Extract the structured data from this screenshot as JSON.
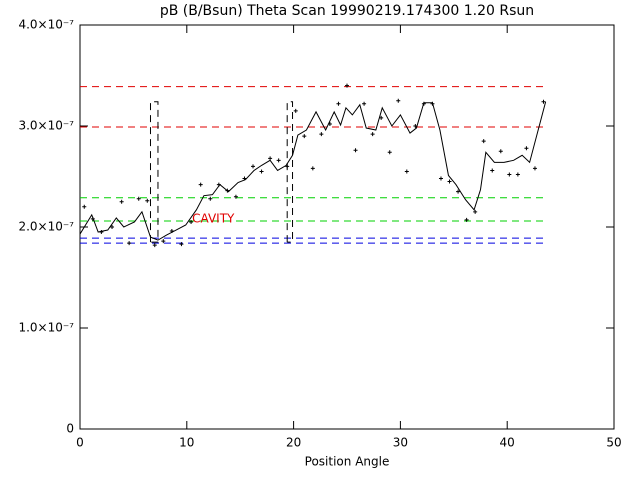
{
  "chart_data": {
    "type": "line",
    "title": "pB (B/Bsun) Theta Scan 19990219.174300 1.20 Rsun",
    "x_label": "Position Angle",
    "xlim": [
      0,
      50
    ],
    "xticks": [
      0,
      10,
      20,
      30,
      40,
      50
    ],
    "ylim": [
      0,
      4e-07
    ],
    "yticks": [
      0,
      {
        "value": 1e-07,
        "label": "1.0×10⁻⁷"
      },
      {
        "value": 2e-07,
        "label": "2.0×10⁻⁷"
      },
      {
        "value": 3e-07,
        "label": "3.0×10⁻⁷"
      },
      {
        "value": 4e-07,
        "label": "4.0×10⁻⁷"
      }
    ],
    "line": {
      "color": "#000000",
      "x": [
        0,
        1.1,
        1.7,
        2.6,
        3.4,
        4.1,
        5.1,
        5.8,
        6.6,
        7.3,
        8.1,
        9.0,
        9.9,
        10.9,
        11.6,
        12.4,
        13.1,
        13.9,
        14.8,
        15.5,
        16.3,
        17.0,
        17.8,
        18.5,
        19.3,
        19.9,
        20.4,
        21.2,
        22.1,
        23.0,
        23.8,
        24.4,
        24.9,
        25.5,
        26.2,
        26.8,
        27.7,
        28.3,
        29.2,
        30.0,
        30.9,
        31.5,
        32.2,
        33.0,
        33.7,
        34.5,
        35.2,
        36.1,
        36.9,
        37.5,
        38.0,
        38.8,
        39.7,
        40.6,
        41.4,
        42.1,
        42.9,
        43.6
      ],
      "values": [
        1.93e-07,
        2.12e-07,
        1.95e-07,
        1.97e-07,
        2.09e-07,
        2e-07,
        2.05e-07,
        2.15e-07,
        1.9e-07,
        1.87e-07,
        1.92e-07,
        1.97e-07,
        2.02e-07,
        2.17e-07,
        2.31e-07,
        2.32e-07,
        2.42e-07,
        2.35e-07,
        2.44e-07,
        2.47e-07,
        2.56e-07,
        2.61e-07,
        2.66e-07,
        2.56e-07,
        2.61e-07,
        2.71e-07,
        2.91e-07,
        2.96e-07,
        3.14e-07,
        2.96e-07,
        3.14e-07,
        3.01e-07,
        3.18e-07,
        3.11e-07,
        3.21e-07,
        2.98e-07,
        2.96e-07,
        3.18e-07,
        3e-07,
        3.11e-07,
        2.93e-07,
        2.98e-07,
        3.23e-07,
        3.23e-07,
        2.96e-07,
        2.51e-07,
        2.42e-07,
        2.27e-07,
        2.17e-07,
        2.37e-07,
        2.74e-07,
        2.64e-07,
        2.64e-07,
        2.66e-07,
        2.71e-07,
        2.64e-07,
        2.96e-07,
        3.24e-07
      ]
    },
    "points": {
      "color": "#000000",
      "x": [
        0.4,
        1.2,
        2.0,
        3.0,
        3.9,
        4.6,
        5.5,
        6.3,
        7.0,
        7.8,
        8.6,
        9.5,
        10.4,
        11.3,
        12.2,
        13.0,
        13.8,
        14.6,
        15.4,
        16.2,
        17.0,
        17.8,
        18.6,
        19.4,
        20.2,
        21.0,
        21.8,
        22.6,
        23.4,
        24.2,
        25.0,
        25.8,
        26.6,
        27.4,
        28.2,
        29.0,
        29.8,
        30.6,
        31.4,
        32.2,
        33.0,
        33.8,
        34.6,
        35.4,
        36.2,
        37.0,
        37.8,
        38.6,
        39.4,
        40.2,
        41.0,
        41.8,
        42.6,
        43.4
      ],
      "values": [
        2.2e-07,
        2.08e-07,
        1.95e-07,
        2e-07,
        2.25e-07,
        1.84e-07,
        2.28e-07,
        2.26e-07,
        1.82e-07,
        1.86e-07,
        1.96e-07,
        1.83e-07,
        2.05e-07,
        2.42e-07,
        2.28e-07,
        2.42e-07,
        2.36e-07,
        2.3e-07,
        2.48e-07,
        2.6e-07,
        2.55e-07,
        2.68e-07,
        2.66e-07,
        2.6e-07,
        3.15e-07,
        2.9e-07,
        2.58e-07,
        2.92e-07,
        3.02e-07,
        3.22e-07,
        3.4e-07,
        2.76e-07,
        3.22e-07,
        2.92e-07,
        3.08e-07,
        2.74e-07,
        3.25e-07,
        2.55e-07,
        3e-07,
        3.22e-07,
        3.22e-07,
        2.48e-07,
        2.45e-07,
        2.35e-07,
        2.07e-07,
        2.15e-07,
        2.85e-07,
        2.56e-07,
        2.75e-07,
        2.52e-07,
        2.52e-07,
        2.78e-07,
        2.58e-07,
        3.24e-07
      ]
    },
    "hlines": [
      {
        "value": 3.39e-07,
        "color": "#e00000"
      },
      {
        "value": 2.99e-07,
        "color": "#e00000"
      },
      {
        "value": 2.29e-07,
        "color": "#00d000"
      },
      {
        "value": 2.06e-07,
        "color": "#00d000"
      },
      {
        "value": 1.89e-07,
        "color": "#0000e0"
      },
      {
        "value": 1.84e-07,
        "color": "#0000e0"
      }
    ],
    "regions": [
      {
        "x": [
          6.6,
          7.3
        ],
        "y": [
          1.85e-07,
          3.24e-07
        ],
        "color": "#000000"
      },
      {
        "x": [
          19.4,
          19.9
        ],
        "y": [
          1.85e-07,
          3.24e-07
        ],
        "color": "#000000"
      }
    ],
    "annotation": {
      "text": "CAVITY",
      "x": 10.5,
      "y": 2.08e-07,
      "color": "#e00000"
    }
  }
}
